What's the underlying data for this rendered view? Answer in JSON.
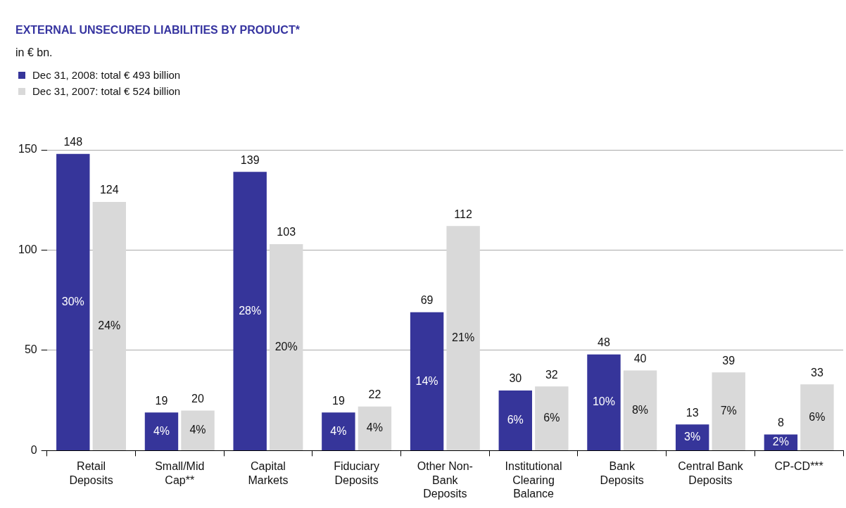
{
  "chart_data": {
    "type": "bar",
    "title": "EXTERNAL UNSECURED LIABILITIES BY PRODUCT*",
    "subtitle": "in € bn.",
    "categories": [
      "Retail\nDeposits",
      "Small/Mid\nCap**",
      "Capital\nMarkets",
      "Fiduciary\nDeposits",
      "Other Non-\nBank\nDeposits",
      "Institutional\nClearing\nBalance",
      "Bank\nDeposits",
      "Central Bank\nDeposits",
      "CP-CD***"
    ],
    "series": [
      {
        "name": "Dec 31, 2008: total € 493 billion",
        "color": "#36359a",
        "values": [
          148,
          19,
          139,
          19,
          69,
          30,
          48,
          13,
          8
        ]
      },
      {
        "name": "Dec 31, 2007: total € 524 billion",
        "color": "#d9d9d9",
        "values": [
          124,
          20,
          103,
          22,
          112,
          32,
          40,
          39,
          33
        ]
      }
    ],
    "annotations": [
      {
        "text": "30%",
        "x": "Retail\nDeposits",
        "y": 74
      },
      {
        "text": "4%",
        "x": "Small/Mid\nCap**",
        "y": 9.5
      },
      {
        "text": "28%",
        "x": "Capital\nMarkets",
        "y": 69.5
      },
      {
        "text": "4%",
        "x": "Fiduciary\nDeposits",
        "y": 9.5
      },
      {
        "text": "14%",
        "x": "Other Non-\nBank\nDeposits",
        "y": 34.5
      },
      {
        "text": "6%",
        "x": "Institutional\nClearing\nBalance",
        "y": 15
      },
      {
        "text": "10%",
        "x": "Bank\nDeposits",
        "y": 24
      },
      {
        "text": "3%",
        "x": "Central Bank\nDeposits",
        "y": 6.5
      },
      {
        "text": "2%",
        "x": "CP-CD***",
        "y": 4
      },
      {
        "text": "24%",
        "x": "Retail\nDeposits",
        "y": 62
      },
      {
        "text": "4%",
        "x": "Small/Mid\nCap**",
        "y": 10
      },
      {
        "text": "20%",
        "x": "Capital\nMarkets",
        "y": 51.5
      },
      {
        "text": "4%",
        "x": "Fiduciary\nDeposits",
        "y": 11
      },
      {
        "text": "21%",
        "x": "Other Non-\nBank\nDeposits",
        "y": 56
      },
      {
        "text": "6%",
        "x": "Institutional\nClearing\nBalance",
        "y": 16
      },
      {
        "text": "8%",
        "x": "Bank\nDeposits",
        "y": 20
      },
      {
        "text": "7%",
        "x": "Central Bank\nDeposits",
        "y": 19.5
      },
      {
        "text": "6%",
        "x": "CP-CD***",
        "y": 16.5
      }
    ],
    "ylim": [
      0,
      150
    ],
    "yticks": [
      0,
      50,
      100,
      150
    ],
    "grid": "y",
    "legend": "top left",
    "data_labels": true
  }
}
